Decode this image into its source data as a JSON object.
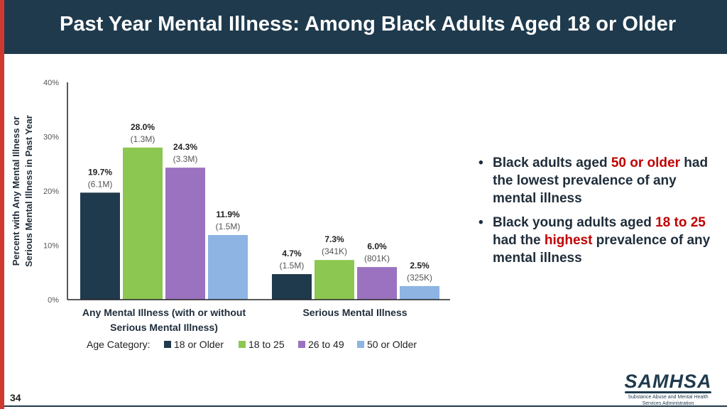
{
  "header": {
    "title": "Past Year Mental Illness: Among Black Adults Aged 18 or Older"
  },
  "colors": {
    "header_bg": "#1f3a4d",
    "accent": "#d0392f",
    "highlight": "#c00000"
  },
  "chart_data": {
    "type": "bar",
    "ylabel": "Percent with Any Mental Illness or Serious Mental Illness in Past Year",
    "ylim": [
      0,
      40
    ],
    "yticks": [
      "0%",
      "10%",
      "20%",
      "30%",
      "40%"
    ],
    "categories": [
      "Any Mental Illness (with or without Serious Mental Illness)",
      "Serious Mental Illness"
    ],
    "legend_title": "Age Category:",
    "legend_placement": "bottom",
    "series": [
      {
        "name": "18 or Older",
        "color": "#203a4d",
        "values": [
          19.7,
          4.7
        ],
        "labels": [
          "19.7%",
          "4.7%"
        ],
        "counts": [
          "(6.1M)",
          "(1.5M)"
        ]
      },
      {
        "name": "18 to 25",
        "color": "#8cc751",
        "values": [
          28.0,
          7.3
        ],
        "labels": [
          "28.0%",
          "7.3%"
        ],
        "counts": [
          "(1.3M)",
          "(341K)"
        ]
      },
      {
        "name": "26 to 49",
        "color": "#9b72bf",
        "values": [
          24.3,
          6.0
        ],
        "labels": [
          "24.3%",
          "6.0%"
        ],
        "counts": [
          "(3.3M)",
          "(801K)"
        ]
      },
      {
        "name": "50 or Older",
        "color": "#8db4e2",
        "values": [
          11.9,
          2.5
        ],
        "labels": [
          "11.9%",
          "2.5%"
        ],
        "counts": [
          "(1.5M)",
          "(325K)"
        ]
      }
    ]
  },
  "bullets": [
    {
      "a": "Black adults aged ",
      "b": "50 or older",
      "c": " had the lowest prevalence of any mental illness"
    },
    {
      "a": "Black young adults aged ",
      "b": "18 to 25",
      "c": " had the ",
      "d": "highest",
      "e": " prevalence of any mental illness"
    }
  ],
  "page_number": "34",
  "logo": {
    "word": "SAMHSA",
    "subtitle_line1": "Substance Abuse and Mental Health",
    "subtitle_line2": "Services Administration"
  }
}
